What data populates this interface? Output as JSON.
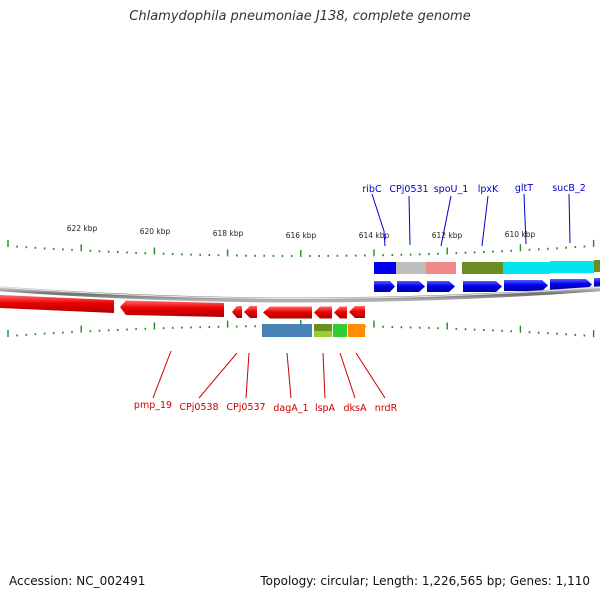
{
  "title": "Chlamydophila pneumoniae J138, complete genome",
  "footer": {
    "accession": "Accession: NC_002491",
    "summary": "Topology: circular; Length: 1,226,565 bp; Genes: 1,110"
  },
  "colors": {
    "forward_label": "#0000cc",
    "reverse_label": "#cc0000",
    "forward_arrow": "#0000ee",
    "reverse_arrow": "#ee0000",
    "tick": "#228b22",
    "backbone": "#808080"
  },
  "scale_labels": [
    "622 kbp",
    "620 kbp",
    "618 kbp",
    "616 kbp",
    "614 kbp",
    "612 kbp",
    "610 kbp"
  ],
  "forward_genes": [
    "ribC",
    "CPj0531",
    "spoU_1",
    "lpxK",
    "gltT",
    "sucB_2"
  ],
  "reverse_genes": [
    "pmp_19",
    "CPj0538",
    "CPj0537",
    "dagA_1",
    "lspA",
    "dksA",
    "nrdR"
  ],
  "cog_category_colors": [
    "#0000ee",
    "#bdbdbd",
    "#ee8a8a",
    "#6b8e23",
    "#00e5ee",
    "#4682b4",
    "#9acd32",
    "#32cd32",
    "#ff8c00"
  ]
}
